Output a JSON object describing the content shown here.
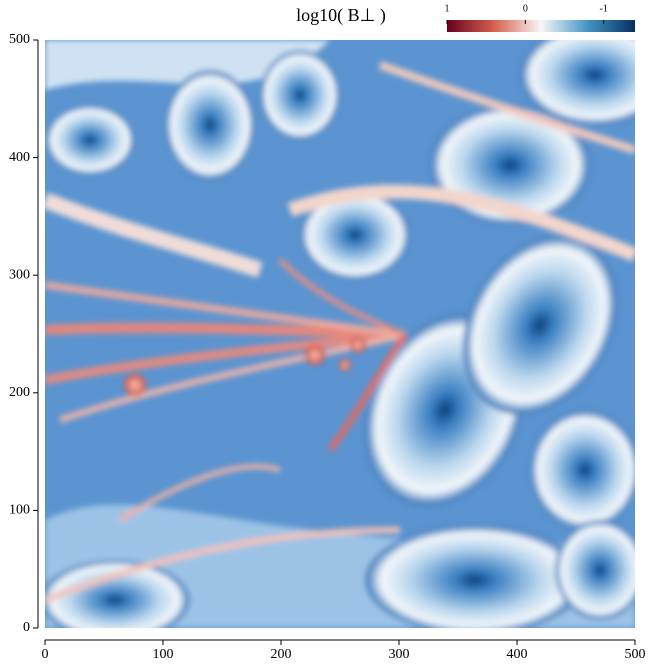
{
  "chart_data": {
    "type": "heatmap",
    "title": "log10( B⊥ )",
    "xlim": [
      0,
      500
    ],
    "xticks": [
      0,
      100,
      200,
      300,
      400,
      500
    ],
    "ylim": [
      0,
      500
    ],
    "yticks": [
      0,
      100,
      200,
      300,
      400,
      500
    ],
    "colorbar": {
      "lim": [
        1,
        -1.4
      ],
      "ticks": [
        1,
        0,
        -1
      ],
      "colors": [
        "#67001f",
        "#d6604d",
        "#f7f7f7",
        "#4393c3",
        "#053061"
      ]
    }
  }
}
